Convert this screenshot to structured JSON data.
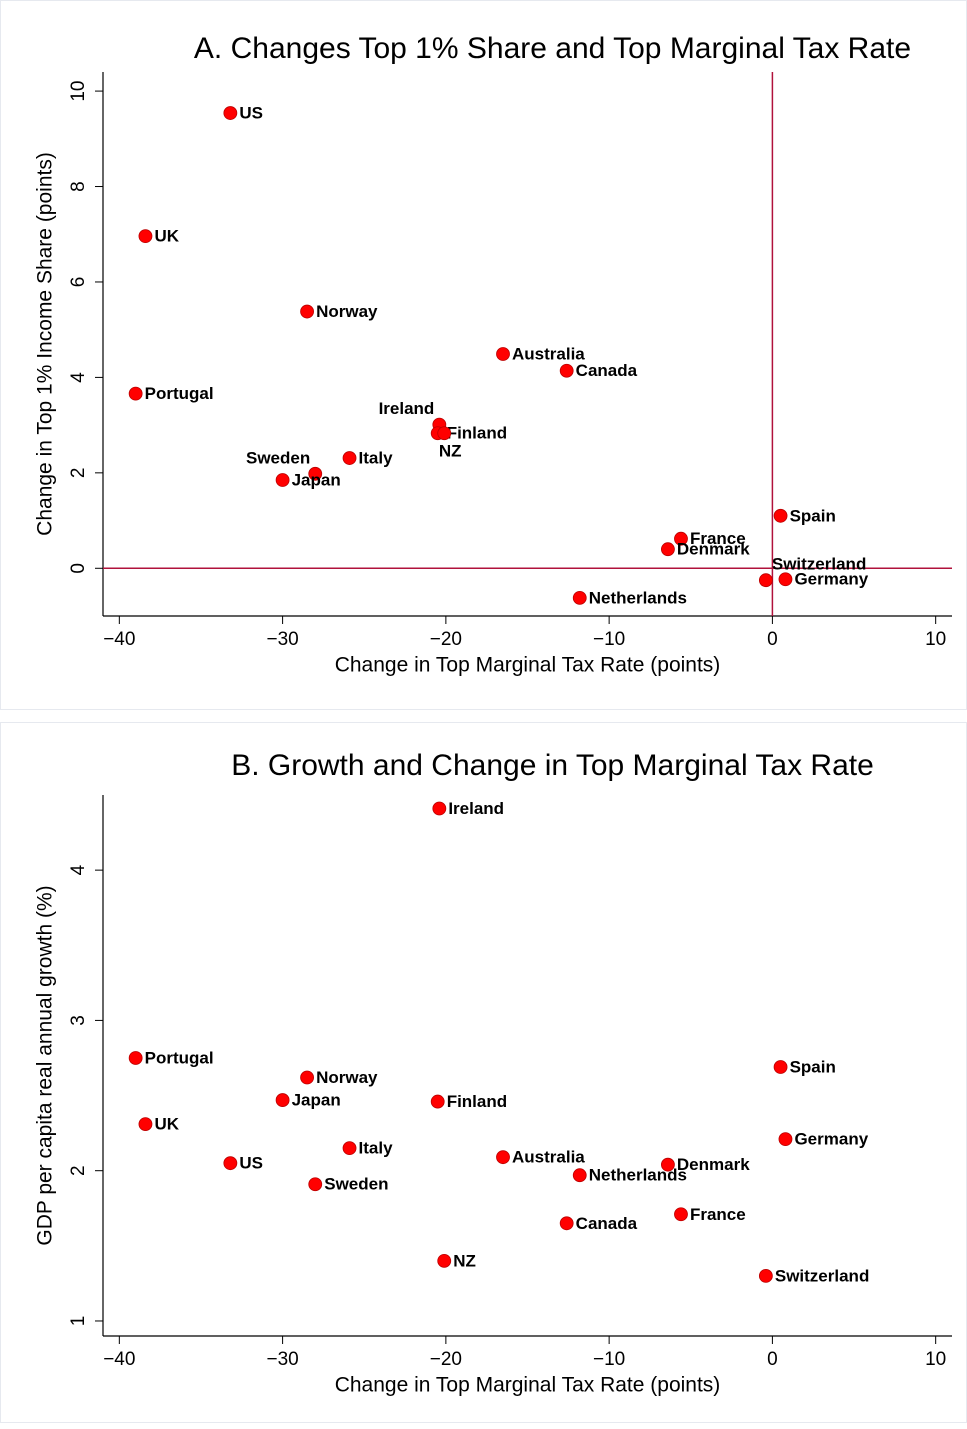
{
  "chart_data": [
    {
      "type": "scatter",
      "title": "A. Changes Top 1% Share and Top Marginal Tax Rate",
      "xlabel": "Change in Top Marginal Tax Rate (points)",
      "ylabel": "Change in Top 1% Income Share (points)",
      "labels": [
        "US",
        "UK",
        "Norway",
        "Australia",
        "Canada",
        "Portugal",
        "Ireland",
        "Finland",
        "NZ",
        "Italy",
        "Sweden",
        "Japan",
        "Spain",
        "France",
        "Denmark",
        "Switzerland",
        "Germany",
        "Netherlands"
      ],
      "x": [
        -33.2,
        -38.4,
        -28.5,
        -16.5,
        -12.6,
        -39.0,
        -20.4,
        -20.5,
        -20.1,
        -25.9,
        -28.0,
        -30.0,
        0.5,
        -5.6,
        -6.4,
        -0.4,
        0.8,
        -11.8
      ],
      "values": [
        9.54,
        6.96,
        5.38,
        4.49,
        4.14,
        3.66,
        3.01,
        2.83,
        2.83,
        2.31,
        1.98,
        1.85,
        1.1,
        0.62,
        0.4,
        -0.25,
        -0.23,
        -0.62
      ],
      "color": "#ff0000",
      "zero_lines": true,
      "zero_line_color": "#b0123b",
      "xlim": [
        -41,
        11
      ],
      "ylim": [
        -1,
        10.4
      ],
      "xticks": [
        {
          "value": -40,
          "label": "−40"
        },
        {
          "value": -30,
          "label": "−30"
        },
        {
          "value": -20,
          "label": "−20"
        },
        {
          "value": -10,
          "label": "−10"
        },
        0,
        10
      ],
      "yticks": [
        0,
        2,
        4,
        6,
        8,
        10
      ]
    },
    {
      "type": "scatter",
      "title": "B. Growth and Change in Top Marginal Tax Rate",
      "xlabel": "Change in Top Marginal Tax Rate (points)",
      "ylabel": "GDP per capita real annual growth (%)",
      "labels": [
        "Ireland",
        "Portugal",
        "Spain",
        "Norway",
        "Japan",
        "Finland",
        "UK",
        "Germany",
        "Italy",
        "Australia",
        "US",
        "Denmark",
        "Netherlands",
        "Sweden",
        "France",
        "Canada",
        "NZ",
        "Switzerland"
      ],
      "x": [
        -20.4,
        -39.0,
        0.5,
        -28.5,
        -30.0,
        -20.5,
        -38.4,
        0.8,
        -25.9,
        -16.5,
        -33.2,
        -6.4,
        -11.8,
        -28.0,
        -5.6,
        -12.6,
        -20.1,
        -0.4
      ],
      "values": [
        4.41,
        2.75,
        2.69,
        2.62,
        2.47,
        2.46,
        2.31,
        2.21,
        2.15,
        2.09,
        2.05,
        2.04,
        1.97,
        1.91,
        1.71,
        1.65,
        1.4,
        1.3
      ],
      "color": "#ff0000",
      "zero_lines": false,
      "xlim": [
        -41,
        11
      ],
      "ylim": [
        0.9,
        4.5
      ],
      "xticks": [
        {
          "value": -40,
          "label": "−40"
        },
        {
          "value": -30,
          "label": "−30"
        },
        {
          "value": -20,
          "label": "−20"
        },
        {
          "value": -10,
          "label": "−10"
        },
        0,
        10
      ],
      "yticks": [
        1,
        2,
        3,
        4
      ]
    }
  ]
}
